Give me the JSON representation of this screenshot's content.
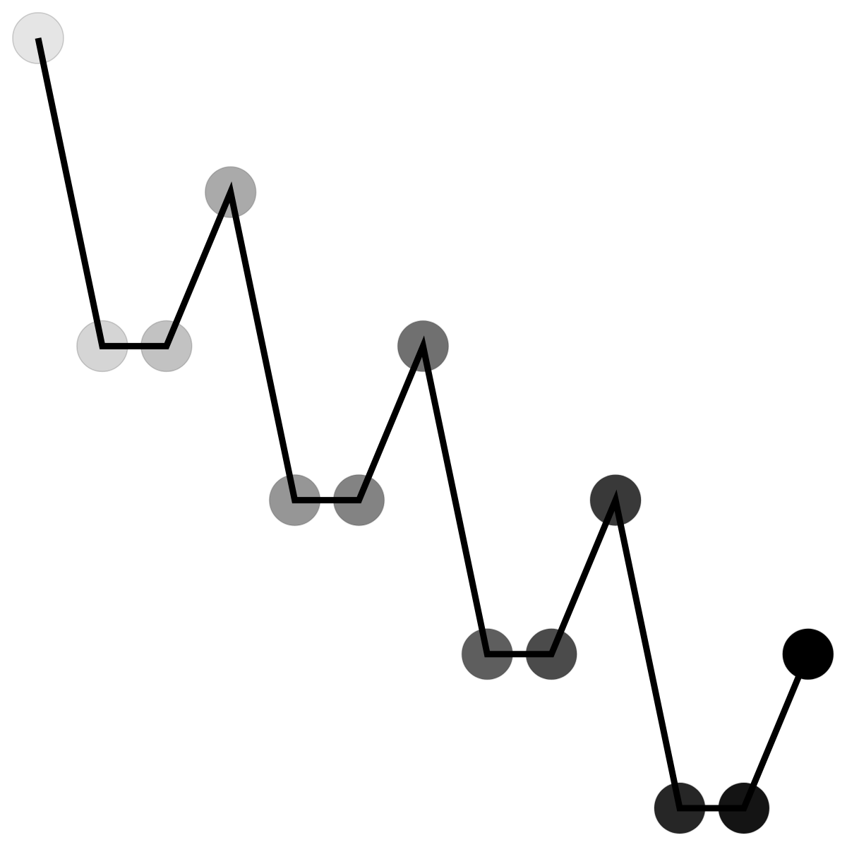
{
  "diagram": {
    "type": "path",
    "line_color": "#000000",
    "nodes": [
      {
        "col": 0,
        "row": 0,
        "shade": "#e5e5e5"
      },
      {
        "col": 1,
        "row": 2,
        "shade": "#d5d5d5"
      },
      {
        "col": 2,
        "row": 2,
        "shade": "#c2c2c2"
      },
      {
        "col": 3,
        "row": 1,
        "shade": "#aaaaaa"
      },
      {
        "col": 4,
        "row": 3,
        "shade": "#969696"
      },
      {
        "col": 5,
        "row": 3,
        "shade": "#838383"
      },
      {
        "col": 6,
        "row": 2,
        "shade": "#707070"
      },
      {
        "col": 7,
        "row": 4,
        "shade": "#5e5e5e"
      },
      {
        "col": 8,
        "row": 4,
        "shade": "#4b4b4b"
      },
      {
        "col": 9,
        "row": 3,
        "shade": "#393939"
      },
      {
        "col": 10,
        "row": 5,
        "shade": "#262626"
      },
      {
        "col": 11,
        "row": 5,
        "shade": "#141414"
      },
      {
        "col": 12,
        "row": 4,
        "shade": "#000000"
      }
    ]
  }
}
